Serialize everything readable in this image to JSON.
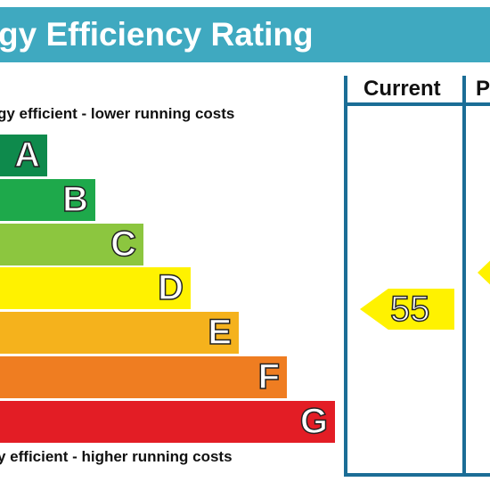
{
  "title": "gy Efficiency Rating",
  "note_top": "gy efficient - lower running costs",
  "note_bottom": "y efficient - higher running costs",
  "columns": {
    "current": "Current",
    "potential": "P"
  },
  "chart_data": {
    "type": "bar",
    "categories": [
      "A",
      "B",
      "C",
      "D",
      "E",
      "F",
      "G"
    ],
    "colors": [
      "#0e8a4c",
      "#1ea94b",
      "#8cc63f",
      "#fff200",
      "#f5b21c",
      "#ef7d21",
      "#e31d25"
    ],
    "current": {
      "value": "55",
      "band": "D",
      "color": "#fff200"
    },
    "potential": {
      "color": "#fff200"
    }
  }
}
